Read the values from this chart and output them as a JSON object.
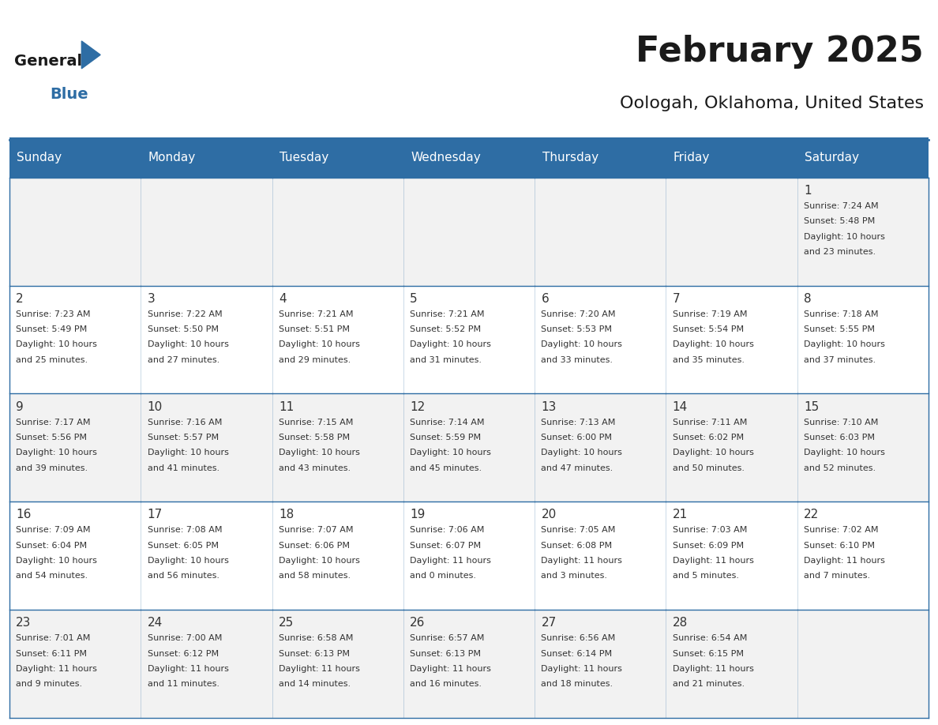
{
  "title": "February 2025",
  "subtitle": "Oologah, Oklahoma, United States",
  "days_of_week": [
    "Sunday",
    "Monday",
    "Tuesday",
    "Wednesday",
    "Thursday",
    "Friday",
    "Saturday"
  ],
  "header_bg": "#2E6DA4",
  "header_text": "#FFFFFF",
  "cell_bg_light": "#F2F2F2",
  "cell_bg_white": "#FFFFFF",
  "cell_border": "#2E6DA4",
  "text_color": "#333333",
  "title_color": "#1a1a1a",
  "logo_general_color": "#1a1a1a",
  "logo_blue_color": "#2E6DA4",
  "weeks": [
    [
      {
        "day": null,
        "sunrise": null,
        "sunset": null,
        "daylight": null
      },
      {
        "day": null,
        "sunrise": null,
        "sunset": null,
        "daylight": null
      },
      {
        "day": null,
        "sunrise": null,
        "sunset": null,
        "daylight": null
      },
      {
        "day": null,
        "sunrise": null,
        "sunset": null,
        "daylight": null
      },
      {
        "day": null,
        "sunrise": null,
        "sunset": null,
        "daylight": null
      },
      {
        "day": null,
        "sunrise": null,
        "sunset": null,
        "daylight": null
      },
      {
        "day": 1,
        "sunrise": "7:24 AM",
        "sunset": "5:48 PM",
        "daylight": "10 hours\nand 23 minutes."
      }
    ],
    [
      {
        "day": 2,
        "sunrise": "7:23 AM",
        "sunset": "5:49 PM",
        "daylight": "10 hours\nand 25 minutes."
      },
      {
        "day": 3,
        "sunrise": "7:22 AM",
        "sunset": "5:50 PM",
        "daylight": "10 hours\nand 27 minutes."
      },
      {
        "day": 4,
        "sunrise": "7:21 AM",
        "sunset": "5:51 PM",
        "daylight": "10 hours\nand 29 minutes."
      },
      {
        "day": 5,
        "sunrise": "7:21 AM",
        "sunset": "5:52 PM",
        "daylight": "10 hours\nand 31 minutes."
      },
      {
        "day": 6,
        "sunrise": "7:20 AM",
        "sunset": "5:53 PM",
        "daylight": "10 hours\nand 33 minutes."
      },
      {
        "day": 7,
        "sunrise": "7:19 AM",
        "sunset": "5:54 PM",
        "daylight": "10 hours\nand 35 minutes."
      },
      {
        "day": 8,
        "sunrise": "7:18 AM",
        "sunset": "5:55 PM",
        "daylight": "10 hours\nand 37 minutes."
      }
    ],
    [
      {
        "day": 9,
        "sunrise": "7:17 AM",
        "sunset": "5:56 PM",
        "daylight": "10 hours\nand 39 minutes."
      },
      {
        "day": 10,
        "sunrise": "7:16 AM",
        "sunset": "5:57 PM",
        "daylight": "10 hours\nand 41 minutes."
      },
      {
        "day": 11,
        "sunrise": "7:15 AM",
        "sunset": "5:58 PM",
        "daylight": "10 hours\nand 43 minutes."
      },
      {
        "day": 12,
        "sunrise": "7:14 AM",
        "sunset": "5:59 PM",
        "daylight": "10 hours\nand 45 minutes."
      },
      {
        "day": 13,
        "sunrise": "7:13 AM",
        "sunset": "6:00 PM",
        "daylight": "10 hours\nand 47 minutes."
      },
      {
        "day": 14,
        "sunrise": "7:11 AM",
        "sunset": "6:02 PM",
        "daylight": "10 hours\nand 50 minutes."
      },
      {
        "day": 15,
        "sunrise": "7:10 AM",
        "sunset": "6:03 PM",
        "daylight": "10 hours\nand 52 minutes."
      }
    ],
    [
      {
        "day": 16,
        "sunrise": "7:09 AM",
        "sunset": "6:04 PM",
        "daylight": "10 hours\nand 54 minutes."
      },
      {
        "day": 17,
        "sunrise": "7:08 AM",
        "sunset": "6:05 PM",
        "daylight": "10 hours\nand 56 minutes."
      },
      {
        "day": 18,
        "sunrise": "7:07 AM",
        "sunset": "6:06 PM",
        "daylight": "10 hours\nand 58 minutes."
      },
      {
        "day": 19,
        "sunrise": "7:06 AM",
        "sunset": "6:07 PM",
        "daylight": "11 hours\nand 0 minutes."
      },
      {
        "day": 20,
        "sunrise": "7:05 AM",
        "sunset": "6:08 PM",
        "daylight": "11 hours\nand 3 minutes."
      },
      {
        "day": 21,
        "sunrise": "7:03 AM",
        "sunset": "6:09 PM",
        "daylight": "11 hours\nand 5 minutes."
      },
      {
        "day": 22,
        "sunrise": "7:02 AM",
        "sunset": "6:10 PM",
        "daylight": "11 hours\nand 7 minutes."
      }
    ],
    [
      {
        "day": 23,
        "sunrise": "7:01 AM",
        "sunset": "6:11 PM",
        "daylight": "11 hours\nand 9 minutes."
      },
      {
        "day": 24,
        "sunrise": "7:00 AM",
        "sunset": "6:12 PM",
        "daylight": "11 hours\nand 11 minutes."
      },
      {
        "day": 25,
        "sunrise": "6:58 AM",
        "sunset": "6:13 PM",
        "daylight": "11 hours\nand 14 minutes."
      },
      {
        "day": 26,
        "sunrise": "6:57 AM",
        "sunset": "6:13 PM",
        "daylight": "11 hours\nand 16 minutes."
      },
      {
        "day": 27,
        "sunrise": "6:56 AM",
        "sunset": "6:14 PM",
        "daylight": "11 hours\nand 18 minutes."
      },
      {
        "day": 28,
        "sunrise": "6:54 AM",
        "sunset": "6:15 PM",
        "daylight": "11 hours\nand 21 minutes."
      },
      {
        "day": null,
        "sunrise": null,
        "sunset": null,
        "daylight": null
      }
    ]
  ]
}
